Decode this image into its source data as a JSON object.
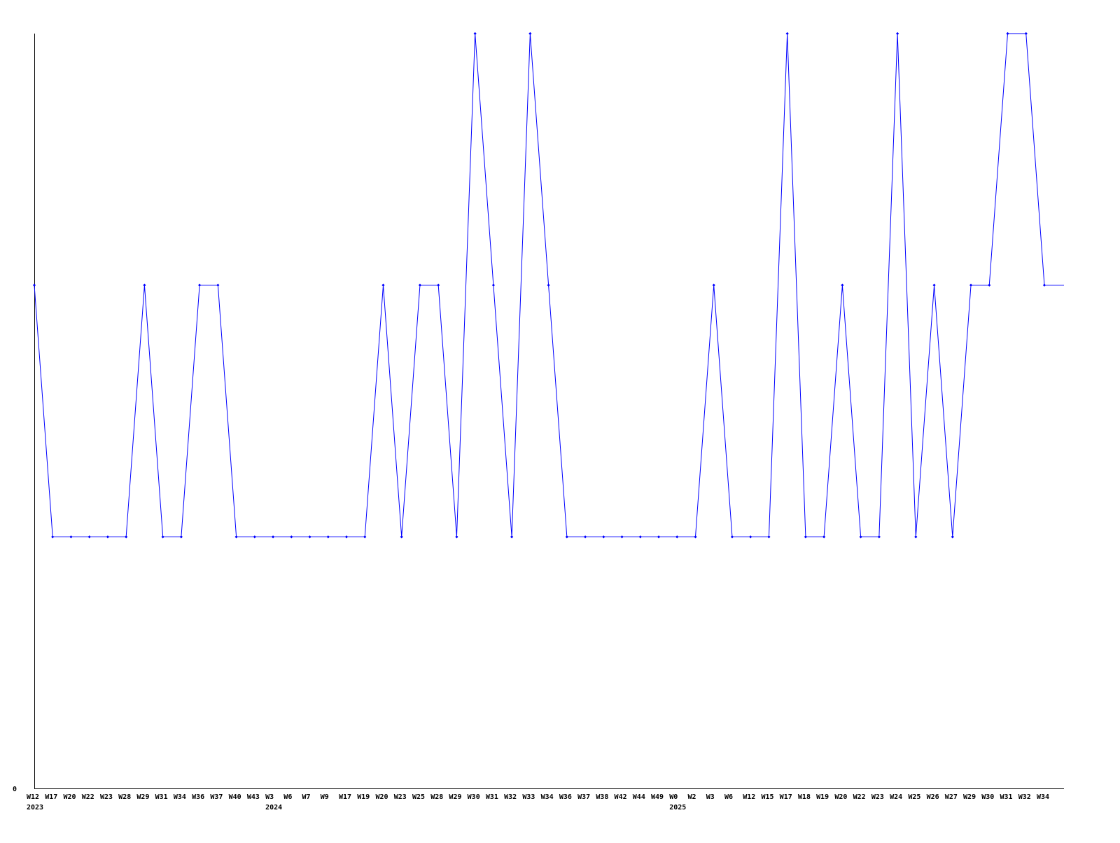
{
  "chart_data": {
    "type": "line",
    "title": "",
    "xlabel": "",
    "ylabel": "",
    "ylim": [
      0,
      3
    ],
    "y_tick_labels": [
      "0"
    ],
    "grid": false,
    "legend": "none",
    "line_color": "#0000ff",
    "categories": [
      "W12",
      "W17",
      "W20",
      "W22",
      "W23",
      "W28",
      "W29",
      "W31",
      "W34",
      "W36",
      "W37",
      "W40",
      "W43",
      "W3",
      "W6",
      "W7",
      "W9",
      "W17",
      "W19",
      "W20",
      "W23",
      "W25",
      "W28",
      "W29",
      "W30",
      "W31",
      "W32",
      "W33",
      "W34",
      "W36",
      "W37",
      "W38",
      "W42",
      "W44",
      "W49",
      "W0",
      "W2",
      "W3",
      "W6",
      "W12",
      "W15",
      "W17",
      "W18",
      "W19",
      "W20",
      "W22",
      "W23",
      "W24",
      "W25",
      "W26",
      "W27",
      "W29",
      "W30",
      "W31",
      "W32",
      "W34"
    ],
    "year_labels": [
      {
        "label": "2023",
        "at_index": 0
      },
      {
        "label": "2024",
        "at_index": 13
      },
      {
        "label": "2025",
        "at_index": 35
      }
    ],
    "values": [
      2,
      1,
      1,
      1,
      1,
      1,
      2,
      1,
      1,
      2,
      2,
      1,
      1,
      1,
      1,
      1,
      1,
      1,
      1,
      2,
      1,
      2,
      2,
      1,
      3,
      2,
      1,
      3,
      2,
      1,
      1,
      1,
      1,
      1,
      1,
      1,
      1,
      2,
      1,
      1,
      1,
      3,
      1,
      1,
      2,
      1,
      1,
      3,
      1,
      2,
      1,
      2,
      2,
      3,
      3,
      2
    ]
  }
}
